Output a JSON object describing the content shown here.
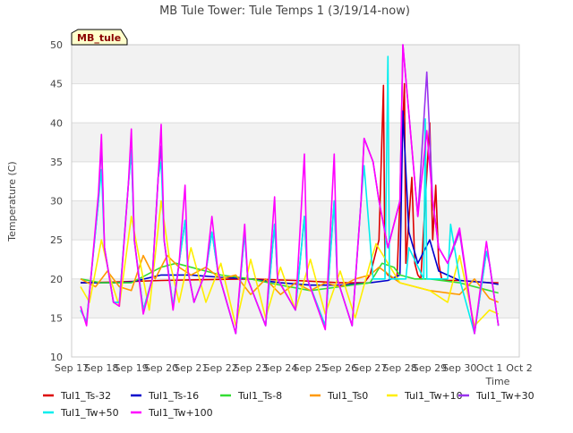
{
  "chart_data": {
    "type": "line",
    "title": "MB Tule Tower: Tule Temps 1 (3/19/14-now)",
    "xlabel": "Time",
    "ylabel": "Temperature (C)",
    "ylim": [
      10,
      50
    ],
    "xlim": [
      0,
      15
    ],
    "yticks": [
      10,
      15,
      20,
      25,
      30,
      35,
      40,
      45,
      50
    ],
    "xtick_labels": [
      "Sep 17",
      "Sep 18",
      "Sep 19",
      "Sep 20",
      "Sep 21",
      "Sep 22",
      "Sep 23",
      "Sep 24",
      "Sep 25",
      "Sep 26",
      "Sep 27",
      "Sep 28",
      "Sep 29",
      "Sep 30",
      "Oct 1",
      "Oct 2"
    ],
    "x_units": "days since Sep 17",
    "grid": true,
    "legend_position": "bottom",
    "annotation": "MB_tule",
    "series": [
      {
        "name": "Tul1_Ts-32",
        "color": "#dd0000",
        "x": [
          0.3,
          1.5,
          3.0,
          4.5,
          6.0,
          7.5,
          9.0,
          9.8,
          10.0,
          10.3,
          10.45,
          10.5,
          10.6,
          10.9,
          11.1,
          11.15,
          11.2,
          11.4,
          11.5,
          11.6,
          11.7,
          12.0,
          12.1,
          12.2,
          12.3,
          12.4,
          12.6,
          13.0,
          14.0,
          14.3
        ],
        "values": [
          19.5,
          19.6,
          19.8,
          19.9,
          20.0,
          19.8,
          19.5,
          19.5,
          20.5,
          25.0,
          44.8,
          21.0,
          20.5,
          19.8,
          40.0,
          45.0,
          22.0,
          33.0,
          22.0,
          20.5,
          20.0,
          40.0,
          25.0,
          32.0,
          22.0,
          20.0,
          19.8,
          19.8,
          19.5,
          19.5
        ]
      },
      {
        "name": "Tul1_Ts-16",
        "color": "#0000cc",
        "x": [
          0.3,
          1.5,
          2.0,
          3.0,
          4.0,
          5.0,
          6.0,
          7.0,
          8.0,
          9.0,
          10.0,
          10.6,
          11.0,
          11.1,
          11.3,
          11.6,
          12.0,
          12.3,
          13.0,
          14.0,
          14.3
        ],
        "values": [
          19.5,
          19.5,
          19.6,
          20.5,
          20.5,
          20.2,
          20.0,
          19.5,
          19.2,
          19.2,
          19.5,
          19.8,
          20.5,
          41.5,
          26.0,
          22.0,
          25.0,
          21.0,
          19.8,
          19.5,
          19.3
        ]
      },
      {
        "name": "Tul1_Ts-8",
        "color": "#33dd33",
        "x": [
          0.3,
          1.0,
          2.0,
          2.5,
          3.0,
          3.5,
          4.0,
          5.0,
          6.0,
          7.0,
          8.0,
          9.0,
          10.0,
          10.4,
          10.8,
          11.0,
          11.5,
          12.0,
          13.0,
          14.0,
          14.3
        ],
        "values": [
          20.0,
          19.5,
          19.5,
          20.5,
          21.5,
          22.0,
          21.5,
          20.5,
          20.0,
          19.2,
          18.5,
          19.0,
          19.5,
          22.0,
          21.5,
          20.5,
          20.0,
          20.0,
          19.5,
          18.5,
          18.2
        ]
      },
      {
        "name": "Tul1_Ts0",
        "color": "#ff9900",
        "x": [
          0.3,
          0.8,
          1.2,
          1.6,
          2.0,
          2.4,
          2.8,
          3.2,
          3.6,
          4.0,
          4.5,
          5.0,
          5.5,
          6.0,
          6.5,
          7.0,
          7.5,
          8.0,
          8.5,
          9.0,
          9.5,
          10.0,
          10.3,
          11.0,
          12.0,
          13.0,
          13.5,
          14.0,
          14.3
        ],
        "values": [
          20.0,
          19.0,
          21.0,
          19.0,
          18.5,
          23.0,
          20.0,
          23.0,
          21.5,
          20.5,
          21.5,
          20.0,
          20.5,
          18.0,
          20.0,
          18.0,
          19.5,
          18.5,
          19.5,
          19.0,
          20.0,
          20.5,
          21.5,
          19.5,
          18.5,
          18.0,
          20.0,
          17.5,
          17.0
        ]
      },
      {
        "name": "Tul1_Tw+10",
        "color": "#ffee00",
        "x": [
          0.3,
          0.6,
          1.0,
          1.3,
          1.6,
          2.0,
          2.3,
          2.6,
          3.0,
          3.3,
          3.6,
          4.0,
          4.5,
          5.0,
          5.5,
          6.0,
          6.5,
          7.0,
          7.5,
          8.0,
          8.5,
          9.0,
          9.5,
          10.0,
          10.2,
          10.6,
          11.0,
          12.0,
          12.6,
          13.0,
          13.5,
          14.0,
          14.3
        ],
        "values": [
          19.0,
          17.0,
          25.0,
          20.0,
          16.5,
          28.0,
          22.0,
          16.0,
          30.0,
          22.0,
          17.0,
          24.0,
          17.0,
          22.0,
          14.0,
          22.5,
          15.0,
          21.5,
          16.0,
          22.5,
          15.5,
          21.0,
          15.0,
          22.0,
          24.5,
          22.0,
          19.5,
          18.5,
          17.0,
          23.0,
          14.0,
          16.0,
          15.5
        ]
      },
      {
        "name": "Tul1_Tw+30",
        "color": "#9933ee",
        "x": [
          0.3,
          0.5,
          0.9,
          1.0,
          1.1,
          1.4,
          1.6,
          1.9,
          2.0,
          2.1,
          2.4,
          2.7,
          2.9,
          3.0,
          3.1,
          3.4,
          3.6,
          3.8,
          3.9,
          4.1,
          4.5,
          4.7,
          4.9,
          5.5,
          5.8,
          5.9,
          6.5,
          6.8,
          6.9,
          7.5,
          7.8,
          7.9,
          8.5,
          8.8,
          8.9,
          9.4,
          9.7,
          9.8,
          10.1,
          10.3,
          10.6,
          11.0,
          11.1,
          11.6,
          11.9,
          12.1,
          12.3,
          12.6,
          13.0,
          13.5,
          13.9,
          14.0,
          14.3
        ],
        "values": [
          16.0,
          14.5,
          30.0,
          37.5,
          24.0,
          17.0,
          17.0,
          32.0,
          36.5,
          25.0,
          16.0,
          20.0,
          33.0,
          37.0,
          25.0,
          16.5,
          22.0,
          27.5,
          21.0,
          17.0,
          21.0,
          26.0,
          21.0,
          13.0,
          26.0,
          20.0,
          14.0,
          27.0,
          20.0,
          16.0,
          28.0,
          20.0,
          14.0,
          30.0,
          20.0,
          14.0,
          30.0,
          38.0,
          35.0,
          30.0,
          24.0,
          30.0,
          50.0,
          28.0,
          46.5,
          30.0,
          24.0,
          22.0,
          26.0,
          13.0,
          23.5,
          22.0,
          14.0
        ]
      },
      {
        "name": "Tul1_Tw+50",
        "color": "#00eeee",
        "x": [
          0.3,
          0.5,
          0.9,
          1.0,
          1.1,
          1.4,
          1.6,
          1.9,
          2.0,
          2.1,
          2.4,
          2.7,
          2.9,
          3.0,
          3.1,
          3.4,
          3.6,
          3.8,
          3.9,
          4.1,
          4.5,
          4.7,
          4.9,
          5.5,
          5.8,
          5.9,
          6.5,
          6.8,
          6.9,
          7.5,
          7.8,
          7.9,
          8.5,
          8.8,
          8.9,
          9.4,
          9.7,
          9.8,
          10.1,
          10.5,
          10.6,
          10.65,
          10.9,
          11.2,
          11.3,
          11.8,
          11.85,
          11.9,
          12.6,
          12.7,
          13.0,
          13.5,
          13.9,
          14.0,
          14.3
        ],
        "values": [
          16.0,
          14.5,
          30.0,
          34.0,
          24.0,
          17.0,
          17.0,
          32.0,
          36.5,
          25.0,
          16.0,
          20.0,
          33.0,
          35.0,
          25.0,
          16.5,
          22.0,
          27.5,
          21.0,
          17.0,
          21.0,
          26.0,
          21.0,
          13.0,
          26.0,
          20.0,
          14.0,
          27.0,
          20.0,
          16.0,
          28.0,
          20.0,
          14.0,
          30.0,
          20.0,
          14.0,
          30.0,
          34.5,
          20.0,
          20.0,
          48.5,
          20.0,
          20.0,
          20.0,
          24.0,
          20.0,
          40.5,
          20.0,
          20.0,
          27.0,
          20.0,
          13.0,
          23.5,
          22.0,
          14.0
        ]
      },
      {
        "name": "Tul1_Tw+100",
        "color": "#ff00ff",
        "x": [
          0.3,
          0.5,
          0.9,
          1.0,
          1.1,
          1.4,
          1.6,
          1.9,
          2.0,
          2.1,
          2.4,
          2.7,
          2.9,
          3.0,
          3.1,
          3.4,
          3.6,
          3.8,
          3.9,
          4.1,
          4.5,
          4.7,
          4.9,
          5.5,
          5.8,
          5.9,
          6.5,
          6.8,
          6.9,
          7.5,
          7.8,
          7.9,
          8.5,
          8.8,
          8.9,
          9.4,
          9.7,
          9.8,
          10.1,
          10.3,
          10.6,
          11.0,
          11.1,
          11.6,
          11.9,
          12.1,
          12.3,
          12.6,
          13.0,
          13.5,
          13.9,
          14.0,
          14.3
        ],
        "values": [
          16.5,
          14.0,
          31.0,
          38.5,
          24.0,
          17.0,
          16.5,
          32.0,
          39.2,
          25.0,
          15.5,
          20.0,
          33.0,
          39.8,
          25.0,
          16.0,
          22.0,
          32.0,
          21.0,
          17.0,
          21.0,
          28.0,
          21.0,
          13.0,
          27.0,
          20.0,
          14.0,
          30.5,
          20.0,
          16.0,
          36.0,
          20.0,
          13.5,
          36.0,
          20.0,
          14.0,
          30.0,
          38.0,
          35.0,
          30.0,
          24.0,
          30.0,
          50.0,
          28.0,
          39.0,
          30.0,
          24.0,
          22.0,
          26.5,
          13.0,
          24.8,
          22.0,
          14.0
        ]
      }
    ]
  }
}
